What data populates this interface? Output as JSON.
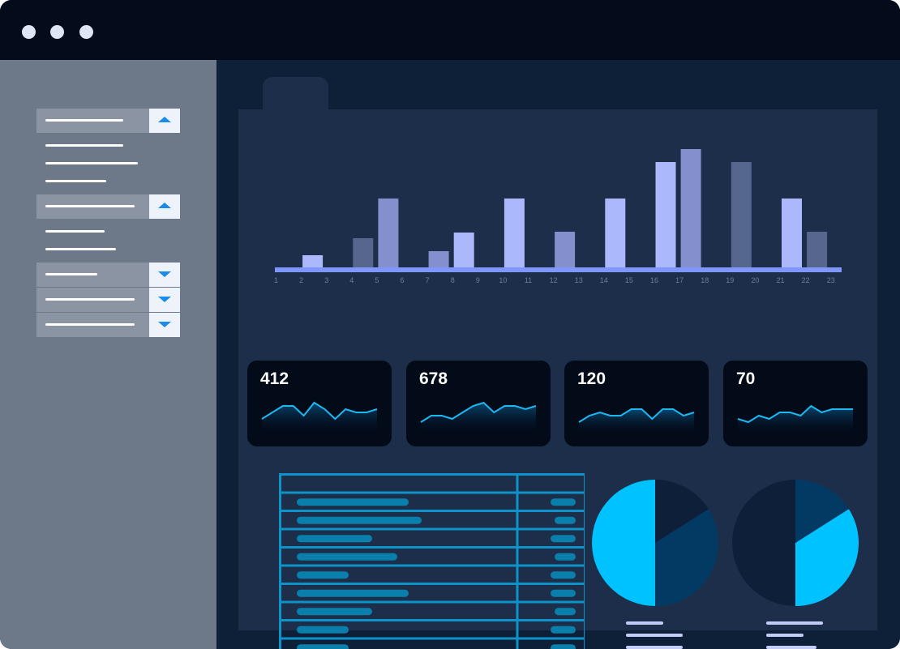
{
  "window": {
    "controls": [
      "dot",
      "dot",
      "dot"
    ]
  },
  "sidebar": {
    "sections": [
      {
        "expanded": true,
        "icon": "chevron-up-icon",
        "items": 3
      },
      {
        "expanded": true,
        "icon": "chevron-up-icon",
        "items": 2
      },
      {
        "expanded": false,
        "icon": "chevron-down-icon",
        "items": 0
      },
      {
        "expanded": false,
        "icon": "chevron-down-icon",
        "items": 0
      },
      {
        "expanded": false,
        "icon": "chevron-down-icon",
        "items": 0
      }
    ]
  },
  "chart_data": {
    "type": "bar",
    "categories": [
      "1",
      "2",
      "3",
      "4",
      "5",
      "6",
      "7",
      "8",
      "9",
      "10",
      "11",
      "12",
      "13",
      "14",
      "15",
      "16",
      "17",
      "18",
      "19",
      "20",
      "21",
      "22",
      "23"
    ],
    "values": [
      null,
      15,
      null,
      36,
      85,
      null,
      20,
      43,
      null,
      85,
      null,
      44,
      null,
      85,
      null,
      130,
      146,
      null,
      130,
      null,
      85,
      44,
      null
    ],
    "ylim": [
      0,
      160
    ],
    "grid": false,
    "colors": {
      "axis": "#7f97f8",
      "light": "#abb8fb",
      "mid": "#8490cd",
      "dark": "#56678f"
    }
  },
  "kpis": [
    {
      "value": "412",
      "trend": [
        3,
        5,
        7,
        7,
        4,
        8,
        6,
        3,
        6,
        5,
        5,
        6
      ]
    },
    {
      "value": "678",
      "trend": [
        2,
        4,
        4,
        3,
        5,
        7,
        8,
        5,
        7,
        7,
        6,
        7
      ]
    },
    {
      "value": "120",
      "trend": [
        2,
        4,
        5,
        4,
        4,
        6,
        6,
        3,
        6,
        6,
        4,
        5
      ]
    },
    {
      "value": "70",
      "trend": [
        3,
        2,
        4,
        3,
        5,
        5,
        4,
        7,
        5,
        6,
        6,
        6
      ]
    }
  ],
  "table": {
    "rows": 9,
    "header": true,
    "colors": {
      "border": "#0d93c8",
      "pill": "#0b7fab"
    }
  },
  "pies": [
    {
      "slices": [
        {
          "value": 50,
          "color": "#00c2ff"
        },
        {
          "value": 34,
          "color": "#033a64"
        },
        {
          "value": 16,
          "color": "#0d1f39"
        }
      ]
    },
    {
      "slices": [
        {
          "value": 50,
          "color": "#0d1f39"
        },
        {
          "value": 34,
          "color": "#00c2ff"
        },
        {
          "value": 16,
          "color": "#033a64"
        }
      ]
    }
  ],
  "colors": {
    "titlebar": "#040c1c",
    "sidebar": "#6d7888",
    "main": "#0e1f38",
    "panel": "#1d2e4a",
    "accent": "#00c2ff",
    "chevron": "#1a8be8",
    "legend": "#c3cbf7"
  }
}
